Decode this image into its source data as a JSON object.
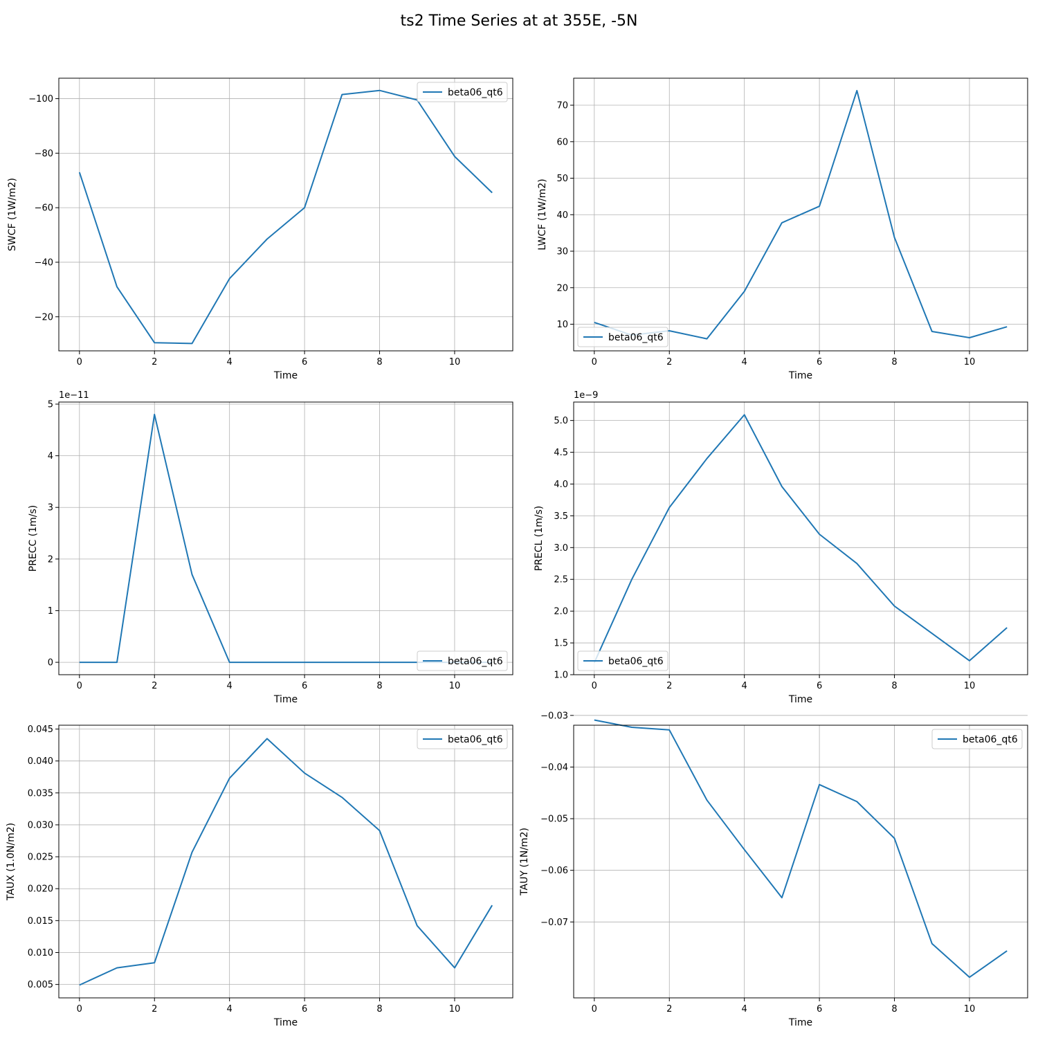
{
  "figure": {
    "title": "ts2 Time Series at at 355E, -5N"
  },
  "chart_data": [
    {
      "type": "line",
      "xlabel": "Time",
      "ylabel": "SWCF (1W/m2)",
      "x": [
        0,
        1,
        2,
        3,
        4,
        5,
        6,
        7,
        8,
        9,
        10,
        11
      ],
      "series": [
        {
          "name": "beta06_qt6",
          "color": "#1f77b4",
          "values": [
            -73,
            -31,
            -10.5,
            -10.2,
            -34,
            -48.5,
            -60,
            -101.5,
            -103,
            -99.5,
            -78.8,
            -65.5
          ]
        }
      ],
      "xlim": [
        -0.55,
        11.55
      ],
      "ylim": [
        -7.5,
        -107.5
      ],
      "xticks": [
        0,
        2,
        4,
        6,
        8,
        10
      ],
      "xtick_labels": [
        "0",
        "2",
        "4",
        "6",
        "8",
        "10"
      ],
      "yticks": [
        -100,
        -80,
        -60,
        -40,
        -20
      ],
      "ytick_labels": [
        "−100",
        "−80",
        "−60",
        "−40",
        "−20"
      ],
      "offset_text": "",
      "inverted_y": true,
      "grid": true,
      "legend": "upper right"
    },
    {
      "type": "line",
      "xlabel": "Time",
      "ylabel": "LWCF (1W/m2)",
      "x": [
        0,
        1,
        2,
        3,
        4,
        5,
        6,
        7,
        8,
        9,
        10,
        11
      ],
      "series": [
        {
          "name": "beta06_qt6",
          "color": "#1f77b4",
          "values": [
            10.5,
            7,
            8.2,
            6,
            19,
            37.8,
            42.3,
            74,
            33.8,
            8,
            6.3,
            9.3
          ]
        }
      ],
      "xlim": [
        -0.55,
        11.55
      ],
      "ylim": [
        2.7,
        77.4
      ],
      "xticks": [
        0,
        2,
        4,
        6,
        8,
        10
      ],
      "xtick_labels": [
        "0",
        "2",
        "4",
        "6",
        "8",
        "10"
      ],
      "yticks": [
        10,
        20,
        30,
        40,
        50,
        60,
        70
      ],
      "ytick_labels": [
        "10",
        "20",
        "30",
        "40",
        "50",
        "60",
        "70"
      ],
      "offset_text": "",
      "inverted_y": true,
      "grid": true,
      "legend": "lower left"
    },
    {
      "type": "line",
      "xlabel": "Time",
      "ylabel": "PRECC (1m/s)",
      "x": [
        0,
        1,
        2,
        3,
        4,
        5,
        6,
        7,
        8,
        9,
        10,
        11
      ],
      "series": [
        {
          "name": "beta06_qt6",
          "color": "#1f77b4",
          "values": [
            0,
            0,
            4.8,
            1.7,
            0,
            0,
            0,
            0,
            0,
            0,
            0,
            0
          ]
        }
      ],
      "xlim": [
        -0.55,
        11.55
      ],
      "ylim": [
        -0.24,
        5.04
      ],
      "xticks": [
        0,
        2,
        4,
        6,
        8,
        10
      ],
      "xtick_labels": [
        "0",
        "2",
        "4",
        "6",
        "8",
        "10"
      ],
      "yticks": [
        0,
        1,
        2,
        3,
        4,
        5
      ],
      "ytick_labels": [
        "0",
        "1",
        "2",
        "3",
        "4",
        "5"
      ],
      "offset_text": "1e−11",
      "inverted_y": true,
      "grid": true,
      "legend": "lower right"
    },
    {
      "type": "line",
      "xlabel": "Time",
      "ylabel": "PRECL (1m/s)",
      "x": [
        0,
        1,
        2,
        3,
        4,
        5,
        6,
        7,
        8,
        9,
        10,
        11
      ],
      "series": [
        {
          "name": "beta06_qt6",
          "color": "#1f77b4",
          "values": [
            1.19,
            2.5,
            3.63,
            4.4,
            5.09,
            3.96,
            3.21,
            2.75,
            2.08,
            1.65,
            1.22,
            1.74
          ]
        }
      ],
      "xlim": [
        -0.55,
        11.55
      ],
      "ylim": [
        1.0,
        5.29
      ],
      "xticks": [
        0,
        2,
        4,
        6,
        8,
        10
      ],
      "xtick_labels": [
        "0",
        "2",
        "4",
        "6",
        "8",
        "10"
      ],
      "yticks": [
        1.0,
        1.5,
        2.0,
        2.5,
        3.0,
        3.5,
        4.0,
        4.5,
        5.0
      ],
      "ytick_labels": [
        "1.0",
        "1.5",
        "2.0",
        "2.5",
        "3.0",
        "3.5",
        "4.0",
        "4.5",
        "5.0"
      ],
      "offset_text": "1e−9",
      "inverted_y": true,
      "grid": true,
      "legend": "lower left"
    },
    {
      "type": "line",
      "xlabel": "Time",
      "ylabel": "TAUX (1.0N/m2)",
      "x": [
        0,
        1,
        2,
        3,
        4,
        5,
        6,
        7,
        8,
        9,
        10,
        11
      ],
      "series": [
        {
          "name": "beta06_qt6",
          "color": "#1f77b4",
          "values": [
            0.0049,
            0.0076,
            0.0084,
            0.0257,
            0.0373,
            0.0435,
            0.0381,
            0.0343,
            0.0291,
            0.0142,
            0.0076,
            0.0174
          ]
        }
      ],
      "xlim": [
        -0.55,
        11.55
      ],
      "ylim": [
        0.0029,
        0.0456
      ],
      "xticks": [
        0,
        2,
        4,
        6,
        8,
        10
      ],
      "xtick_labels": [
        "0",
        "2",
        "4",
        "6",
        "8",
        "10"
      ],
      "yticks": [
        0.005,
        0.01,
        0.015,
        0.02,
        0.025,
        0.03,
        0.035,
        0.04,
        0.045
      ],
      "ytick_labels": [
        "0.005",
        "0.010",
        "0.015",
        "0.020",
        "0.025",
        "0.030",
        "0.035",
        "0.040",
        "0.045"
      ],
      "offset_text": "",
      "inverted_y": true,
      "grid": true,
      "legend": "upper right"
    },
    {
      "type": "line",
      "xlabel": "Time",
      "ylabel": "TAUY (1N/m2)",
      "x": [
        0,
        1,
        2,
        3,
        4,
        5,
        6,
        7,
        8,
        9,
        10,
        11
      ],
      "series": [
        {
          "name": "beta06_qt6",
          "color": "#1f77b4",
          "values": [
            -0.0309,
            -0.0323,
            -0.0328,
            -0.0464,
            -0.056,
            -0.0653,
            -0.0434,
            -0.0467,
            -0.0538,
            -0.0742,
            -0.0807,
            -0.0756
          ]
        }
      ],
      "xlim": [
        -0.55,
        11.55
      ],
      "ylim": [
        -0.0847,
        -0.0319
      ],
      "xticks": [
        0,
        2,
        4,
        6,
        8,
        10
      ],
      "xtick_labels": [
        "0",
        "2",
        "4",
        "6",
        "8",
        "10"
      ],
      "yticks": [
        -0.07,
        -0.06,
        -0.05,
        -0.04,
        -0.03
      ],
      "ytick_labels": [
        "−0.07",
        "−0.06",
        "−0.05",
        "−0.04",
        "−0.03"
      ],
      "offset_text": "",
      "inverted_y": false,
      "grid": true,
      "legend": "upper right"
    }
  ]
}
